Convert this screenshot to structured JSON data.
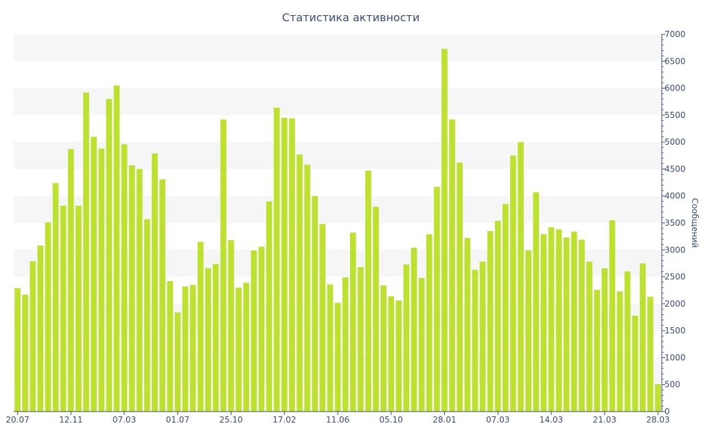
{
  "chart_data": {
    "type": "bar",
    "title": "Статистика активности",
    "ylabel": "Сообщений",
    "xlabel": "",
    "ylim": [
      0,
      7000
    ],
    "y_ticks": [
      0,
      500,
      1000,
      1500,
      2000,
      2500,
      3000,
      3500,
      4000,
      4500,
      5000,
      5500,
      6000,
      6500,
      7000
    ],
    "x_tick_labels": [
      {
        "index": 0,
        "label": "20.07"
      },
      {
        "index": 7,
        "label": "12.11"
      },
      {
        "index": 14,
        "label": "07.03"
      },
      {
        "index": 21,
        "label": "01.07"
      },
      {
        "index": 28,
        "label": "25.10"
      },
      {
        "index": 35,
        "label": "17.02"
      },
      {
        "index": 42,
        "label": "11.06"
      },
      {
        "index": 49,
        "label": "05.10"
      },
      {
        "index": 56,
        "label": "28.01"
      },
      {
        "index": 63,
        "label": "07.03"
      },
      {
        "index": 70,
        "label": "14.03"
      },
      {
        "index": 77,
        "label": "21.03"
      },
      {
        "index": 84,
        "label": "28.03"
      }
    ],
    "y_axis_position": "right",
    "grid": "horizontal bands",
    "bar_color": "#bde12f",
    "band_color": "#f6f6f6",
    "axis_color": "#3a4a7a",
    "values": [
      2290,
      2170,
      2790,
      3080,
      3510,
      4240,
      3820,
      4870,
      3820,
      5920,
      5100,
      4880,
      5800,
      6050,
      4960,
      4570,
      4500,
      3570,
      4790,
      4310,
      2420,
      1840,
      2320,
      2350,
      3150,
      2660,
      2740,
      5420,
      3180,
      2300,
      2390,
      2990,
      3060,
      3900,
      5640,
      5450,
      5440,
      4770,
      4580,
      4000,
      3480,
      2360,
      2020,
      2490,
      3320,
      2680,
      4470,
      3800,
      2340,
      2140,
      2060,
      2730,
      3040,
      2480,
      3290,
      4170,
      6730,
      5420,
      4620,
      3220,
      2630,
      2780,
      3350,
      3540,
      3850,
      4750,
      5000,
      2990,
      4070,
      3290,
      3420,
      3380,
      3230,
      3340,
      3190,
      2780,
      2260,
      2660,
      3550,
      2230,
      2600,
      1780,
      2750,
      2130,
      510
    ]
  }
}
